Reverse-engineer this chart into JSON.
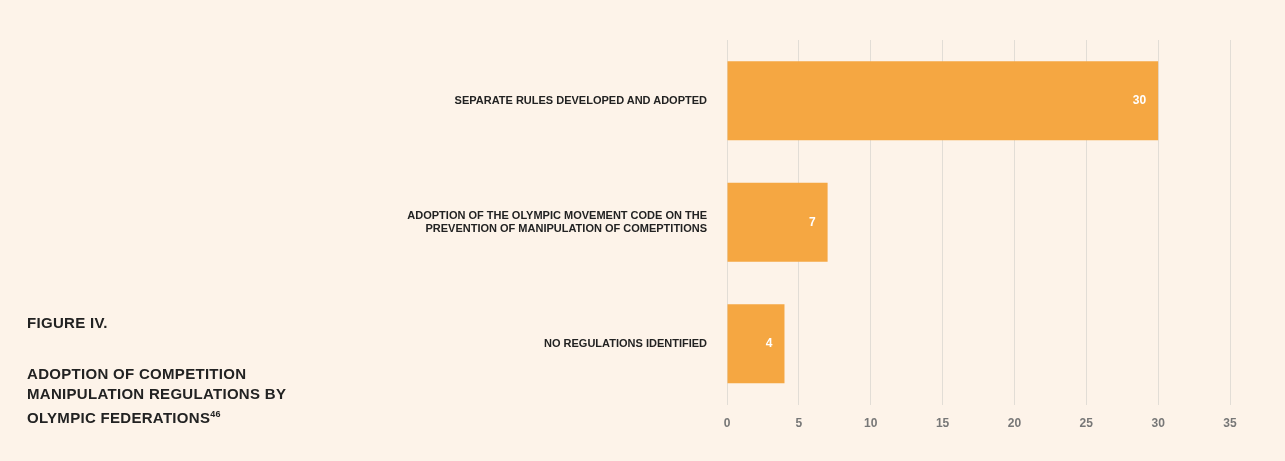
{
  "chart_data": {
    "type": "bar",
    "orientation": "horizontal",
    "title": "FIGURE IV.",
    "subtitle": "ADOPTION OF COMPETITION MANIPULATION REGULATIONS BY OLYMPIC FEDERATIONS$^{46}$",
    "categories": [
      "SEPARATE RULES DEVELOPED AND ADOPTED",
      "ADOPTION OF THE OLYMPIC MOVEMENT CODE ON THE PREVENTION OF MANIPULATION OF COMEPTITIONS",
      "NO REGULATIONS IDENTIFIED"
    ],
    "values": [
      30,
      7,
      4
    ],
    "color": "#f5a742",
    "xlim": [
      0,
      35
    ],
    "xticks": [
      0,
      5,
      10,
      15,
      20,
      25,
      30,
      35
    ],
    "grid": "x",
    "data_labels": true,
    "legend": false
  }
}
